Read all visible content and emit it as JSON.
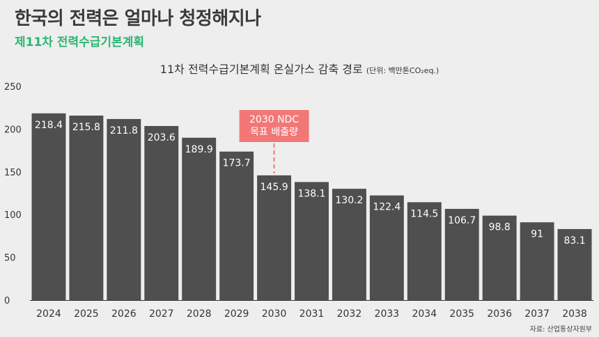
{
  "header": {
    "title": "한국의 전력은 얼마나 청정해지나",
    "subtitle": "제11차 전력수급기본계획"
  },
  "source": "자료: 산업통상자원부",
  "colors": {
    "bar": "#4f4f4f",
    "highlight": "#f27777",
    "subtitle": "#2bb673",
    "background": "#eeeeee"
  },
  "chart_data": {
    "type": "bar",
    "title": "11차 전력수급기본계획 온실가스 감축 경로",
    "unit": "(단위: 백만톤CO₂eq.)",
    "xlabel": "",
    "ylabel": "",
    "categories": [
      "2024",
      "2025",
      "2026",
      "2027",
      "2028",
      "2029",
      "2030",
      "2031",
      "2032",
      "2033",
      "2034",
      "2035",
      "2036",
      "2037",
      "2038"
    ],
    "values": [
      218.4,
      215.8,
      211.8,
      203.6,
      189.9,
      173.7,
      145.9,
      138.1,
      130.2,
      122.4,
      114.5,
      106.7,
      98.8,
      91,
      83.1
    ],
    "ylim": [
      0,
      250
    ],
    "yticks": [
      0,
      50,
      100,
      150,
      200,
      250
    ],
    "grid": false,
    "annotation": {
      "category": "2030",
      "lines": [
        "2030 NDC",
        "목표 배출량"
      ]
    }
  }
}
